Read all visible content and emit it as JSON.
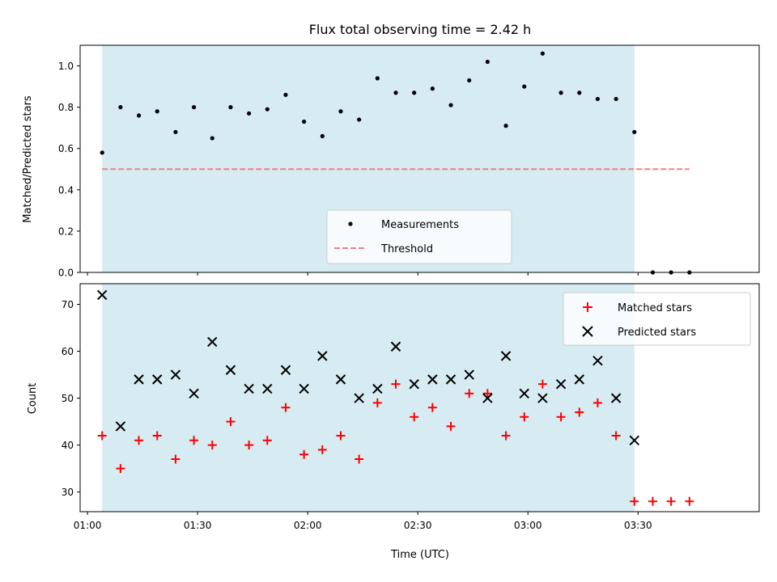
{
  "chart_data": [
    {
      "type": "scatter",
      "title": "Flux total observing time = 2.42 h",
      "xlabel": "",
      "ylabel": "Matched/Predicted stars",
      "ylim": [
        0,
        1.1
      ],
      "yticks": [
        "0.0",
        "0.2",
        "0.4",
        "0.6",
        "0.8",
        "1.0"
      ],
      "xlim": [
        "00:58",
        "04:03"
      ],
      "shaded_span": [
        "01:04",
        "03:29"
      ],
      "shade_color": "#add8e6",
      "grid": false,
      "legend_position": "lower-center",
      "series": [
        {
          "name": "Measurements",
          "marker": "dot",
          "color": "#000000",
          "points": [
            [
              "01:04",
              0.58
            ],
            [
              "01:09",
              0.8
            ],
            [
              "01:14",
              0.76
            ],
            [
              "01:19",
              0.78
            ],
            [
              "01:24",
              0.68
            ],
            [
              "01:29",
              0.8
            ],
            [
              "01:34",
              0.65
            ],
            [
              "01:39",
              0.8
            ],
            [
              "01:44",
              0.77
            ],
            [
              "01:49",
              0.79
            ],
            [
              "01:54",
              0.86
            ],
            [
              "01:59",
              0.73
            ],
            [
              "02:04",
              0.66
            ],
            [
              "02:09",
              0.78
            ],
            [
              "02:14",
              0.74
            ],
            [
              "02:19",
              0.94
            ],
            [
              "02:24",
              0.87
            ],
            [
              "02:29",
              0.87
            ],
            [
              "02:34",
              0.89
            ],
            [
              "02:39",
              0.81
            ],
            [
              "02:44",
              0.93
            ],
            [
              "02:49",
              1.02
            ],
            [
              "02:54",
              0.71
            ],
            [
              "02:59",
              0.9
            ],
            [
              "03:04",
              1.06
            ],
            [
              "03:09",
              0.87
            ],
            [
              "03:14",
              0.87
            ],
            [
              "03:19",
              0.84
            ],
            [
              "03:24",
              0.84
            ],
            [
              "03:29",
              0.68
            ],
            [
              "03:34",
              0.0
            ],
            [
              "03:39",
              0.0
            ],
            [
              "03:44",
              0.0
            ]
          ]
        },
        {
          "name": "Threshold",
          "line": "dashed",
          "color": "#f08080",
          "points": [
            [
              "01:04",
              0.5
            ],
            [
              "03:44",
              0.5
            ]
          ]
        }
      ]
    },
    {
      "type": "scatter",
      "title": "",
      "xlabel": "Time (UTC)",
      "ylabel": "Count",
      "ylim": [
        25.8,
        74.4
      ],
      "yticks": [
        "30",
        "40",
        "50",
        "60",
        "70"
      ],
      "xticks": [
        "01:00",
        "01:30",
        "02:00",
        "02:30",
        "03:00",
        "03:30"
      ],
      "xlim": [
        "00:58",
        "04:03"
      ],
      "shaded_span": [
        "01:04",
        "03:29"
      ],
      "shade_color": "#add8e6",
      "grid": false,
      "legend_position": "upper-right",
      "series": [
        {
          "name": "Matched stars",
          "marker": "plus",
          "color": "#ff0000",
          "points": [
            [
              "01:04",
              42
            ],
            [
              "01:09",
              35
            ],
            [
              "01:14",
              41
            ],
            [
              "01:19",
              42
            ],
            [
              "01:24",
              37
            ],
            [
              "01:29",
              41
            ],
            [
              "01:34",
              40
            ],
            [
              "01:39",
              45
            ],
            [
              "01:44",
              40
            ],
            [
              "01:49",
              41
            ],
            [
              "01:54",
              48
            ],
            [
              "01:59",
              38
            ],
            [
              "02:04",
              39
            ],
            [
              "02:09",
              42
            ],
            [
              "02:14",
              37
            ],
            [
              "02:19",
              49
            ],
            [
              "02:24",
              53
            ],
            [
              "02:29",
              46
            ],
            [
              "02:34",
              48
            ],
            [
              "02:39",
              44
            ],
            [
              "02:44",
              51
            ],
            [
              "02:49",
              51
            ],
            [
              "02:54",
              42
            ],
            [
              "02:59",
              46
            ],
            [
              "03:04",
              53
            ],
            [
              "03:09",
              46
            ],
            [
              "03:14",
              47
            ],
            [
              "03:19",
              49
            ],
            [
              "03:24",
              42
            ],
            [
              "03:29",
              28
            ],
            [
              "03:34",
              28
            ],
            [
              "03:39",
              28
            ],
            [
              "03:44",
              28
            ]
          ]
        },
        {
          "name": "Predicted stars",
          "marker": "x",
          "color": "#000000",
          "points": [
            [
              "01:04",
              72
            ],
            [
              "01:09",
              44
            ],
            [
              "01:14",
              54
            ],
            [
              "01:19",
              54
            ],
            [
              "01:24",
              55
            ],
            [
              "01:29",
              51
            ],
            [
              "01:34",
              62
            ],
            [
              "01:39",
              56
            ],
            [
              "01:44",
              52
            ],
            [
              "01:49",
              52
            ],
            [
              "01:54",
              56
            ],
            [
              "01:59",
              52
            ],
            [
              "02:04",
              59
            ],
            [
              "02:09",
              54
            ],
            [
              "02:14",
              50
            ],
            [
              "02:19",
              52
            ],
            [
              "02:24",
              61
            ],
            [
              "02:29",
              53
            ],
            [
              "02:34",
              54
            ],
            [
              "02:39",
              54
            ],
            [
              "02:44",
              55
            ],
            [
              "02:49",
              50
            ],
            [
              "02:54",
              59
            ],
            [
              "02:59",
              51
            ],
            [
              "03:04",
              50
            ],
            [
              "03:09",
              53
            ],
            [
              "03:14",
              54
            ],
            [
              "03:19",
              58
            ],
            [
              "03:24",
              50
            ],
            [
              "03:29",
              41
            ]
          ]
        }
      ]
    }
  ]
}
